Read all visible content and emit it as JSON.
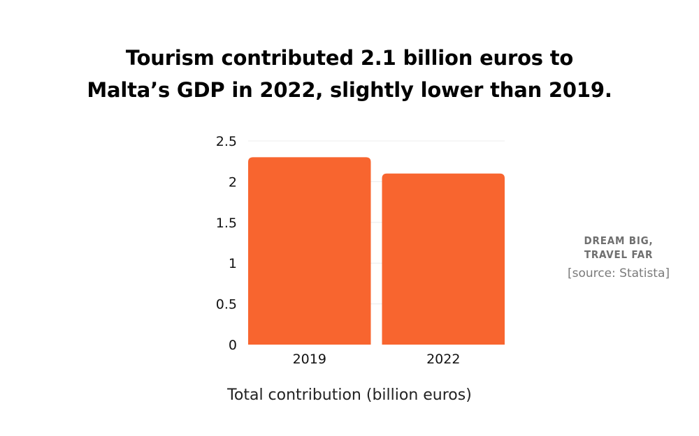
{
  "title_lines": [
    "Tourism contributed 2.1 billion euros to",
    "Malta’s GDP in 2022, slightly lower than 2019."
  ],
  "brand": {
    "line1": "DREAM BIG,",
    "line2": "TRAVEL FAR",
    "source": "[source: Statista]"
  },
  "chart_data": {
    "type": "bar",
    "categories": [
      "2019",
      "2022"
    ],
    "values": [
      2.3,
      2.1
    ],
    "xlabel": "Total contribution (billion euros)",
    "ylabel": "",
    "ylim": [
      0,
      2.5
    ],
    "yticks": [
      0,
      0.5,
      1,
      1.5,
      2,
      2.5
    ],
    "ytick_labels": [
      "0",
      "0.5",
      "1",
      "1.5",
      "2",
      "2.5"
    ],
    "grid": true,
    "legend": "none",
    "bar_color": "#f8652f",
    "grid_color": "#ececec"
  }
}
